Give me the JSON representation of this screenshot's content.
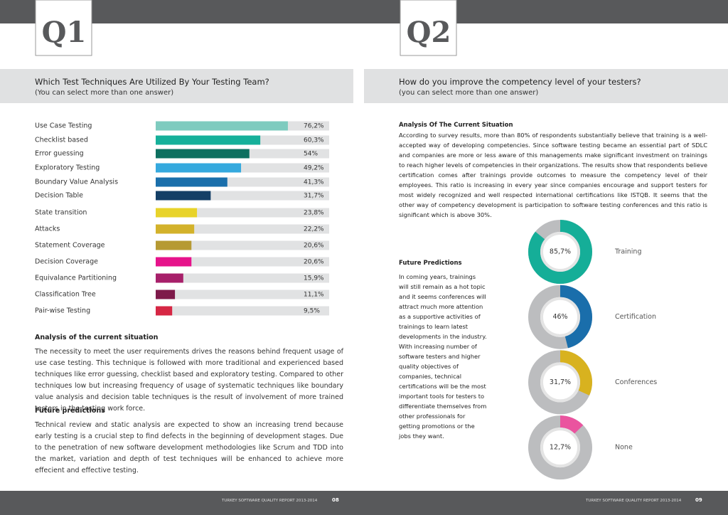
{
  "left": {
    "label": "Q1",
    "title": "Which Test Techniques Are Utilized By Your Testing Team?",
    "subtitle": "(You can select more than one answer)",
    "analysis_heading": "Analysis of the current situation",
    "analysis_text": "The necessity to meet the user requirements drives the reasons behind frequent usage of use case testing. This technique is followed with more traditional and experienced based techniques like error guessing, checklist based and exploratory testing. Compared to other techniques low but increasing frequency of usage of systematic techniques like boundary value analysis and decision table techniques is the result of involvement of more trained testers in the testing work force.",
    "future_heading": "Future predictions",
    "future_text": "Technical review and static analysis are expected to show an increasing trend because early testing is a crucial step to find defects in the beginning of development stages. Due to the penetration of new software development methodologies like Scrum and TDD into the market, variation and depth of test techniques will be enhanced to achieve more effecient and effective testing.",
    "footer": "TURKEY SOFTWARE QUALITY REPORT 2013-2014",
    "page_number": "08"
  },
  "right": {
    "label": "Q2",
    "title": "How do you improve the competency level of your testers?",
    "subtitle": "(you can select more than one answer)",
    "analysis_heading": "Analysis Of The Current Situation",
    "analysis_text": "According to survey results, more than 80% of respondents substantially believe that training is a well-accepted way of developing competencies. Since software testing became an essential part of SDLC and companies are more or less aware of this managements make significant investment on trainings to reach higher levels of competencies in their organizations. The results show that respondents believe certification comes after trainings provide outcomes to measure the competency level of their employees. This ratio is increasing in every year since companies encourage and support testers for most widely recognized and well respected international certifications like ISTQB. It seems that the other way of competency development is participation to software testing conferences and this ratio is significant which is above 30%.",
    "future_heading": "Future Predictions",
    "future_text": "In coming years, trainings will still remain as a hot topic and it seems conferences will attract much more attention as a supportive activities of trainings to learn latest developments in the industry. With increasing number of software testers and higher quality objectives of companies, technical certifications will be the most important tools for testers to differentiate themselves from other professionals for getting promotions or the jobs they want.",
    "footer": "TURKEY SOFTWARE QUALITY REPORT 2013-2014",
    "page_number": "09"
  },
  "chart_data": [
    {
      "type": "hbar",
      "categories": [
        "Use Case Testing",
        "Checklist based",
        "Error guessing",
        "Exploratory Testing",
        "Boundary Value Analysis",
        "Decision Table",
        "State transition",
        "Attacks",
        "Statement Coverage",
        "Decision Coverage",
        "Equivalance Partitioning",
        "Classification Tree",
        "Pair-wise Testing"
      ],
      "values": [
        76.2,
        60.3,
        54,
        49.2,
        41.3,
        31.7,
        23.8,
        22.2,
        20.6,
        20.6,
        15.9,
        11.1,
        9.5
      ],
      "value_labels": [
        "76,2%",
        "60,3%",
        "54%",
        "49,2%",
        "41,3%",
        "31,7%",
        "23,8%",
        "22,2%",
        "20,6%",
        "20,6%",
        "15,9%",
        "11,1%",
        "9,5%"
      ],
      "colors": [
        "#7ecbbf",
        "#16b09a",
        "#0e7060",
        "#35a9de",
        "#1a6fab",
        "#143f66",
        "#e8d32a",
        "#d3b22b",
        "#b69a33",
        "#e6138b",
        "#a7206a",
        "#7e1a4a",
        "#d62744"
      ],
      "xlim": [
        0,
        100
      ]
    },
    {
      "type": "donut",
      "categories": [
        "Training",
        "Certification",
        "Conferences",
        "None"
      ],
      "values": [
        85.7,
        46,
        31.7,
        12.7
      ],
      "value_labels": [
        "85,7%",
        "46%",
        "31,7%",
        "12,7%"
      ],
      "colors": [
        "#15ae98",
        "#1a6eab",
        "#d8b21f",
        "#ea549f"
      ],
      "ylim": [
        0,
        100
      ]
    }
  ]
}
